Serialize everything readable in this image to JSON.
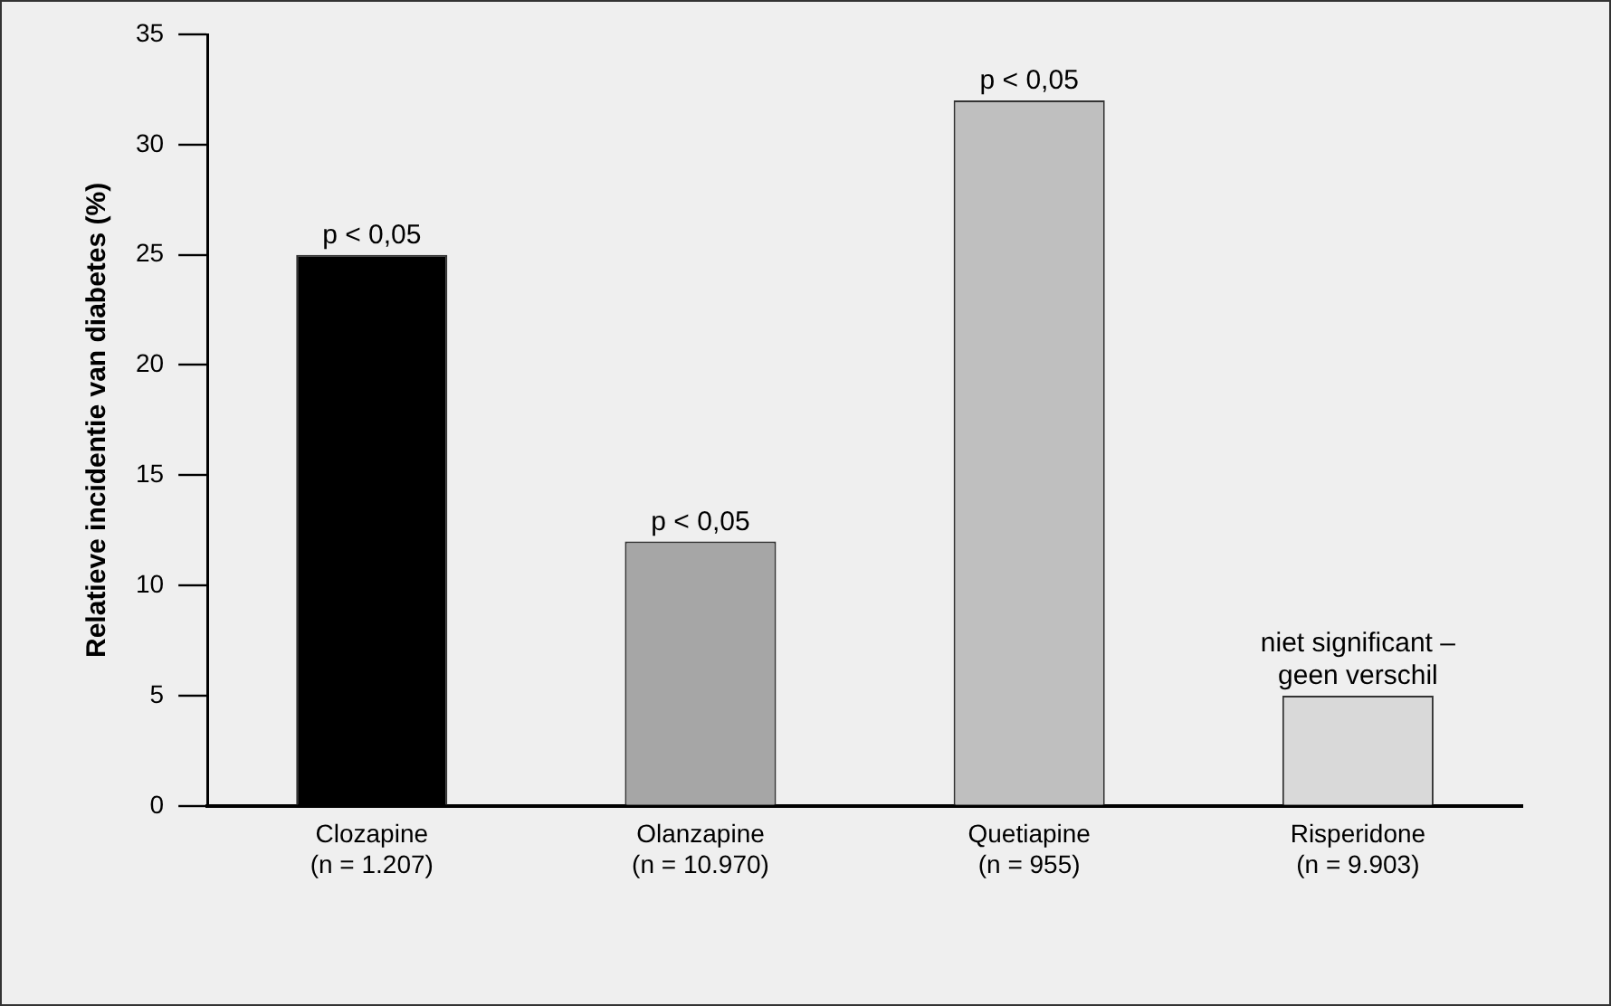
{
  "chart_data": {
    "type": "bar",
    "ylabel": "Relatieve incidentie van diabetes (%)",
    "categories": [
      "Clozapine\n(n = 1.207)",
      "Olanzapine\n(n = 10.970)",
      "Quetiapine\n(n = 955)",
      "Risperidone\n(n = 9.903)"
    ],
    "values": [
      25,
      12,
      32,
      5
    ],
    "colors": [
      "#000000",
      "#a6a6a6",
      "#bfbfbf",
      "#d9d9d9"
    ],
    "ylim": [
      0,
      35
    ],
    "yticks": [
      0,
      5,
      10,
      15,
      20,
      25,
      30,
      35
    ],
    "grid": false,
    "legend": false,
    "annotations": [
      {
        "text": "p < 0,05",
        "x": "Clozapine\n(n = 1.207)",
        "y": 25
      },
      {
        "text": "p < 0,05",
        "x": "Olanzapine\n(n = 10.970)",
        "y": 12
      },
      {
        "text": "p < 0,05",
        "x": "Quetiapine\n(n = 955)",
        "y": 32
      },
      {
        "text": "niet significant –\ngeen verschil",
        "x": "Risperidone\n(n = 9.903)",
        "y": 5
      }
    ]
  }
}
